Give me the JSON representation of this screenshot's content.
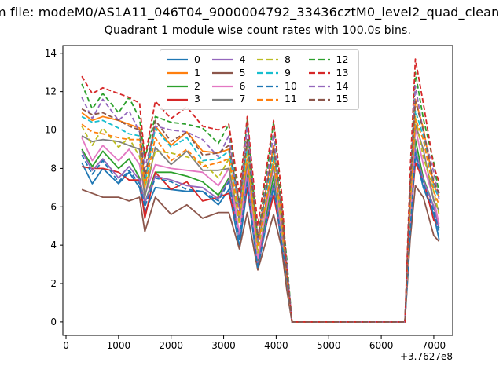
{
  "header": {
    "suptitle": "m file: modeM0/AS1A11_046T04_9000004792_33436cztM0_level2_quad_clean"
  },
  "chart_data": {
    "type": "line",
    "title": "Quadrant 1 module wise count rates with 100.0s bins.",
    "xlabel": "",
    "ylabel": "",
    "x_offset_label": "+3.7627e8",
    "xlim": [
      -60,
      7360
    ],
    "ylim": [
      -0.7,
      14.4
    ],
    "xticks": [
      0,
      1000,
      2000,
      3000,
      4000,
      5000,
      6000,
      7000
    ],
    "yticks": [
      0,
      2,
      4,
      6,
      8,
      10,
      12,
      14
    ],
    "grid": false,
    "legend": {
      "position": "upper center",
      "columns": 4,
      "order": "column-major"
    },
    "axis_color": "#000000",
    "x": [
      300,
      500,
      700,
      1000,
      1200,
      1400,
      1500,
      1700,
      2000,
      2300,
      2600,
      2900,
      3100,
      3300,
      3450,
      3650,
      3950,
      4100,
      4200,
      4300,
      6450,
      6550,
      6650,
      6800,
      7000,
      7100
    ],
    "series": [
      {
        "name": "0",
        "color": "#1f77b4",
        "dashed": false,
        "values": [
          8.3,
          7.2,
          8.0,
          7.2,
          7.8,
          7.0,
          5.7,
          7.0,
          6.9,
          6.8,
          6.8,
          6.1,
          6.9,
          3.9,
          7.0,
          2.8,
          7.0,
          4.1,
          2.2,
          0,
          0,
          4.7,
          8.7,
          7.0,
          5.6,
          4.3
        ]
      },
      {
        "name": "1",
        "color": "#ff7f0e",
        "dashed": false,
        "values": [
          10.9,
          10.5,
          10.7,
          10.5,
          10.3,
          10.1,
          7.3,
          10.2,
          9.2,
          9.9,
          8.9,
          8.8,
          9.0,
          5.9,
          9.3,
          4.4,
          9.2,
          6.0,
          2.5,
          0,
          0,
          7.0,
          11.6,
          10.1,
          7.1,
          6.5
        ]
      },
      {
        "name": "2",
        "color": "#2ca02c",
        "dashed": false,
        "values": [
          9.0,
          8.1,
          8.9,
          8.0,
          8.5,
          7.5,
          6.2,
          7.8,
          7.8,
          7.6,
          7.3,
          6.6,
          7.5,
          4.4,
          7.9,
          3.2,
          7.6,
          4.3,
          2.3,
          0,
          0,
          5.2,
          9.5,
          7.5,
          6.0,
          4.9
        ]
      },
      {
        "name": "3",
        "color": "#d62728",
        "dashed": false,
        "values": [
          8.1,
          8.0,
          8.0,
          7.8,
          7.4,
          7.4,
          5.4,
          7.8,
          6.9,
          7.3,
          6.3,
          6.5,
          6.7,
          4.6,
          7.0,
          3.3,
          6.6,
          4.4,
          1.9,
          0,
          0,
          5.2,
          8.3,
          7.4,
          5.3,
          5.0
        ]
      },
      {
        "name": "4",
        "color": "#9467bd",
        "dashed": false,
        "values": [
          8.9,
          7.9,
          8.5,
          7.5,
          8.1,
          7.4,
          6.2,
          7.6,
          7.4,
          7.1,
          7.0,
          6.4,
          7.4,
          4.4,
          7.5,
          2.9,
          7.2,
          4.3,
          2.5,
          0,
          0,
          4.9,
          9.0,
          7.4,
          6.0,
          4.8
        ]
      },
      {
        "name": "5",
        "color": "#8c564b",
        "dashed": false,
        "values": [
          6.9,
          6.7,
          6.5,
          6.5,
          6.3,
          6.5,
          4.7,
          6.5,
          5.6,
          6.1,
          5.4,
          5.7,
          5.7,
          3.8,
          5.7,
          2.7,
          5.6,
          3.9,
          1.7,
          0,
          0,
          4.3,
          7.1,
          6.5,
          4.5,
          4.2
        ]
      },
      {
        "name": "6",
        "color": "#e377c2",
        "dashed": false,
        "values": [
          9.6,
          8.4,
          9.2,
          8.4,
          9.0,
          8.2,
          6.6,
          8.2,
          8.0,
          7.9,
          7.8,
          7.1,
          8.0,
          4.6,
          8.1,
          3.3,
          8.1,
          4.8,
          2.6,
          0,
          0,
          5.4,
          10.1,
          8.2,
          6.4,
          5.1
        ]
      },
      {
        "name": "7",
        "color": "#7f7f7f",
        "dashed": false,
        "values": [
          9.7,
          9.4,
          9.5,
          9.4,
          9.2,
          9.0,
          6.5,
          9.1,
          8.2,
          8.9,
          7.9,
          7.9,
          8.0,
          5.3,
          8.3,
          4.0,
          8.2,
          5.4,
          2.2,
          0,
          0,
          6.3,
          10.3,
          9.0,
          6.3,
          5.8
        ]
      },
      {
        "name": "8",
        "color": "#bcbd22",
        "dashed": true,
        "values": [
          10.2,
          9.2,
          10.1,
          9.1,
          9.6,
          8.6,
          7.0,
          8.9,
          8.8,
          8.6,
          8.3,
          7.5,
          8.5,
          5.1,
          8.9,
          3.6,
          8.6,
          5.0,
          2.6,
          0,
          0,
          6.0,
          10.7,
          8.6,
          6.8,
          5.6
        ]
      },
      {
        "name": "9",
        "color": "#17becf",
        "dashed": true,
        "values": [
          10.7,
          10.4,
          10.5,
          10.1,
          9.8,
          9.7,
          7.2,
          10.1,
          9.1,
          9.6,
          8.4,
          8.5,
          8.9,
          6.0,
          9.2,
          4.2,
          8.8,
          5.8,
          2.5,
          0,
          0,
          6.7,
          11.0,
          9.7,
          7.0,
          6.5
        ]
      },
      {
        "name": "10",
        "color": "#1f77b4",
        "dashed": true,
        "values": [
          8.7,
          7.7,
          8.4,
          7.3,
          7.9,
          7.2,
          6.0,
          7.5,
          7.3,
          6.9,
          6.8,
          6.3,
          7.3,
          4.3,
          7.3,
          2.8,
          7.1,
          4.2,
          2.4,
          0,
          0,
          4.7,
          8.8,
          7.2,
          5.8,
          4.7
        ]
      },
      {
        "name": "11",
        "color": "#ff7f0e",
        "dashed": true,
        "values": [
          10.3,
          9.9,
          9.8,
          9.6,
          9.5,
          9.5,
          7.0,
          9.6,
          8.4,
          9.0,
          8.1,
          8.3,
          8.5,
          5.6,
          8.5,
          4.0,
          8.4,
          5.7,
          2.5,
          0,
          0,
          6.3,
          10.6,
          9.5,
          6.8,
          6.1
        ]
      },
      {
        "name": "12",
        "color": "#2ca02c",
        "dashed": true,
        "values": [
          12.4,
          11.1,
          11.9,
          10.9,
          11.7,
          10.6,
          8.5,
          10.7,
          10.4,
          10.3,
          10.1,
          9.3,
          10.3,
          6.0,
          10.5,
          4.3,
          10.4,
          6.2,
          3.3,
          0,
          0,
          7.1,
          13.0,
          10.6,
          8.3,
          6.7
        ]
      },
      {
        "name": "13",
        "color": "#d62728",
        "dashed": true,
        "values": [
          12.8,
          11.9,
          12.2,
          11.9,
          11.7,
          11.4,
          8.5,
          11.5,
          10.6,
          11.2,
          10.2,
          10.0,
          10.3,
          6.7,
          10.7,
          5.0,
          10.5,
          6.8,
          2.9,
          0,
          0,
          7.9,
          13.7,
          11.4,
          8.1,
          7.3
        ]
      },
      {
        "name": "14",
        "color": "#9467bd",
        "dashed": true,
        "values": [
          11.7,
          10.6,
          11.6,
          10.5,
          11.0,
          9.9,
          8.0,
          10.2,
          10.0,
          9.9,
          9.5,
          8.6,
          9.7,
          5.8,
          10.2,
          4.2,
          9.8,
          5.7,
          3.0,
          0,
          0,
          6.9,
          12.3,
          9.9,
          7.8,
          6.4
        ]
      },
      {
        "name": "15",
        "color": "#8c564b",
        "dashed": true,
        "values": [
          11.1,
          10.8,
          10.9,
          10.5,
          10.2,
          10.0,
          7.5,
          10.5,
          9.4,
          9.9,
          8.7,
          8.8,
          9.2,
          6.2,
          9.5,
          4.4,
          9.1,
          6.0,
          2.6,
          0,
          0,
          7.0,
          11.5,
          10.0,
          7.3,
          6.7
        ]
      }
    ]
  }
}
